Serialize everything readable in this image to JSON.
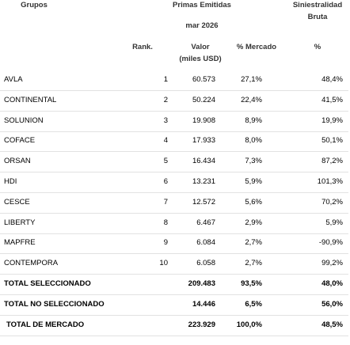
{
  "header": {
    "group": "Grupos",
    "premiums": "Primas Emitidas",
    "period": "mar 2026",
    "loss_ratio": "Siniestralidad",
    "loss_ratio_sub": "Bruta",
    "rank": "Rank.",
    "value": "Valor",
    "value_unit": "(miles USD)",
    "share": "% Mercado",
    "loss_pct": "%"
  },
  "table": {
    "rows": [
      {
        "name": "AVLA",
        "rank": "1",
        "value": "60.573",
        "share": "27,1%",
        "loss": "48,4%"
      },
      {
        "name": "CONTINENTAL",
        "rank": "2",
        "value": "50.224",
        "share": "22,4%",
        "loss": "41,5%"
      },
      {
        "name": "SOLUNION",
        "rank": "3",
        "value": "19.908",
        "share": "8,9%",
        "loss": "19,9%"
      },
      {
        "name": "COFACE",
        "rank": "4",
        "value": "17.933",
        "share": "8,0%",
        "loss": "50,1%"
      },
      {
        "name": "ORSAN",
        "rank": "5",
        "value": "16.434",
        "share": "7,3%",
        "loss": "87,2%"
      },
      {
        "name": "HDI",
        "rank": "6",
        "value": "13.231",
        "share": "5,9%",
        "loss": "101,3%"
      },
      {
        "name": "CESCE",
        "rank": "7",
        "value": "12.572",
        "share": "5,6%",
        "loss": "70,2%"
      },
      {
        "name": "LIBERTY",
        "rank": "8",
        "value": "6.467",
        "share": "2,9%",
        "loss": "5,9%"
      },
      {
        "name": "MAPFRE",
        "rank": "9",
        "value": "6.084",
        "share": "2,7%",
        "loss": "-90,9%"
      },
      {
        "name": "CONTEMPORA",
        "rank": "10",
        "value": "6.058",
        "share": "2,7%",
        "loss": "99,2%"
      }
    ],
    "totals": [
      {
        "name": "TOTAL SELECCIONADO",
        "value": "209.483",
        "share": "93,5%",
        "loss": "48,0%"
      },
      {
        "name": "TOTAL NO SELECCIONADO",
        "value": "14.446",
        "share": "6,5%",
        "loss": "56,0%"
      },
      {
        "name": "TOTAL DE MERCADO",
        "value": "223.929",
        "share": "100,0%",
        "loss": "48,5%"
      }
    ]
  }
}
